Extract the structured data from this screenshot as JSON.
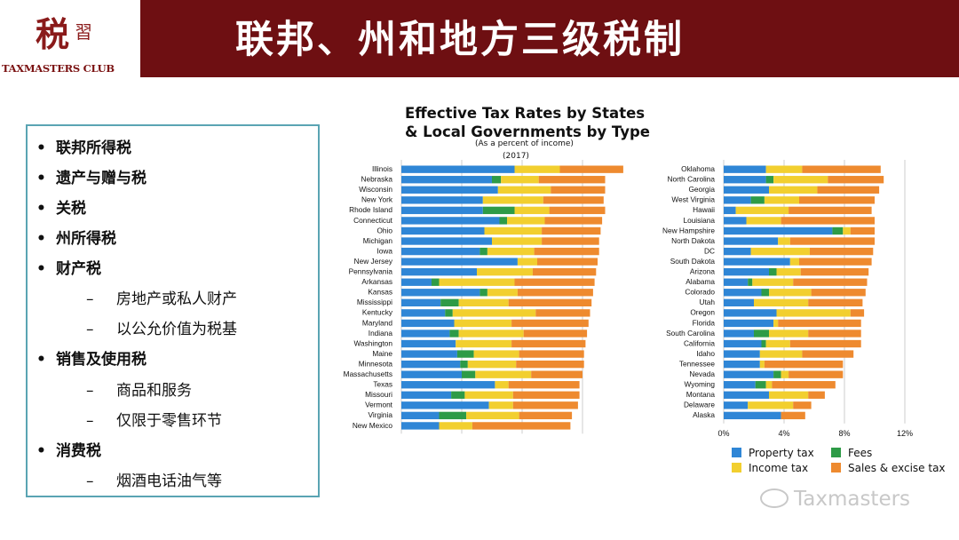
{
  "header": {
    "title": "联邦、州和地方三级税制",
    "logo_char_main": "税",
    "logo_char_small": "習",
    "logo_text": "TAXMASTERS CLUB"
  },
  "bullets": [
    {
      "text": "联邦所得税",
      "subs": []
    },
    {
      "text": "遗产与赠与税",
      "subs": []
    },
    {
      "text": "关税",
      "subs": []
    },
    {
      "text": "州所得税",
      "subs": []
    },
    {
      "text": "财产税",
      "subs": [
        "房地产或私人财产",
        "以公允价值为税基"
      ]
    },
    {
      "text": "销售及使用税",
      "subs": [
        "商品和服务",
        "仅限于零售环节"
      ]
    },
    {
      "text": "消费税",
      "subs": [
        "烟酒电话油气等"
      ]
    }
  ],
  "bullet_symbol": "•",
  "dash_symbol": "–",
  "chart_data": {
    "type": "bar",
    "stacked": true,
    "orientation": "horizontal",
    "title_line1": "Effective Tax Rates by States",
    "title_line2": "& Local Governments by Type",
    "subtitle": "(As a percent of income)",
    "year": "(2017)",
    "xlim": [
      0,
      14
    ],
    "xticks": [
      "0%",
      "4%",
      "8%",
      "12%"
    ],
    "grid": true,
    "legend_placement": "bottom",
    "series_order": [
      "Property tax",
      "Fees",
      "Income tax",
      "Sales & excise tax"
    ],
    "series_colors": {
      "Property tax": "#2f86d6",
      "Fees": "#2e9b47",
      "Income tax": "#f2cf2f",
      "Sales & excise tax": "#ee8a2f"
    },
    "legend": [
      {
        "name": "Property tax",
        "color": "#2f86d6"
      },
      {
        "name": "Fees",
        "color": "#2e9b47"
      },
      {
        "name": "Income tax",
        "color": "#f2cf2f"
      },
      {
        "name": "Sales & excise tax",
        "color": "#ee8a2f"
      }
    ],
    "panels": [
      {
        "rows": [
          {
            "state": "Illinois",
            "values": [
              7.5,
              0,
              3.0,
              4.2
            ]
          },
          {
            "state": "Nebraska",
            "values": [
              6.0,
              0.6,
              2.5,
              4.4
            ]
          },
          {
            "state": "Wisconsin",
            "values": [
              6.4,
              0,
              3.5,
              3.6
            ]
          },
          {
            "state": "New York",
            "values": [
              5.4,
              0,
              4.0,
              4.0
            ]
          },
          {
            "state": "Rhode Island",
            "values": [
              5.4,
              2.1,
              2.3,
              3.7
            ]
          },
          {
            "state": "Connecticut",
            "values": [
              6.5,
              0.5,
              2.5,
              3.8
            ]
          },
          {
            "state": "Ohio",
            "values": [
              5.5,
              0,
              3.8,
              3.9
            ]
          },
          {
            "state": "Michigan",
            "values": [
              6.0,
              0,
              3.3,
              3.8
            ]
          },
          {
            "state": "Iowa",
            "values": [
              5.2,
              0.5,
              3.1,
              4.3
            ]
          },
          {
            "state": "New Jersey",
            "values": [
              7.7,
              0,
              1.3,
              4.0
            ]
          },
          {
            "state": "Pennsylvania",
            "values": [
              5.0,
              0,
              3.7,
              4.2
            ]
          },
          {
            "state": "Arkansas",
            "values": [
              2.0,
              0.5,
              5.0,
              5.3
            ]
          },
          {
            "state": "Kansas",
            "values": [
              5.2,
              0.5,
              2.0,
              5.0
            ]
          },
          {
            "state": "Mississippi",
            "values": [
              2.6,
              1.2,
              3.3,
              5.5
            ]
          },
          {
            "state": "Kentucky",
            "values": [
              2.9,
              0.5,
              5.5,
              3.6
            ]
          },
          {
            "state": "Maryland",
            "values": [
              3.5,
              0,
              3.8,
              5.1
            ]
          },
          {
            "state": "Indiana",
            "values": [
              3.2,
              0.6,
              4.3,
              4.2
            ]
          },
          {
            "state": "Washington",
            "values": [
              3.6,
              0,
              3.7,
              4.9
            ]
          },
          {
            "state": "Maine",
            "values": [
              3.7,
              1.1,
              3.0,
              4.3
            ]
          },
          {
            "state": "Minnesota",
            "values": [
              3.9,
              0.5,
              3.2,
              4.5
            ]
          },
          {
            "state": "Massachusetts",
            "values": [
              4.0,
              0.9,
              3.7,
              3.4
            ]
          },
          {
            "state": "Texas",
            "values": [
              6.2,
              0,
              0.9,
              4.7
            ]
          },
          {
            "state": "Missouri",
            "values": [
              3.3,
              0.9,
              3.2,
              4.4
            ]
          },
          {
            "state": "Vermont",
            "values": [
              5.8,
              0,
              1.6,
              4.3
            ]
          },
          {
            "state": "Virginia",
            "values": [
              2.5,
              1.8,
              3.5,
              3.5
            ]
          },
          {
            "state": "New Mexico",
            "values": [
              2.5,
              0,
              2.2,
              6.5
            ]
          }
        ]
      },
      {
        "rows": [
          {
            "state": "Oklahoma",
            "values": [
              2.8,
              0,
              2.4,
              5.2
            ]
          },
          {
            "state": "North Carolina",
            "values": [
              2.8,
              0.5,
              3.6,
              3.7
            ]
          },
          {
            "state": "Georgia",
            "values": [
              3.0,
              0,
              3.2,
              4.1
            ]
          },
          {
            "state": "West Virginia",
            "values": [
              1.8,
              0.9,
              2.3,
              5.0
            ]
          },
          {
            "state": "Hawaii",
            "values": [
              0.8,
              0,
              3.5,
              5.5
            ]
          },
          {
            "state": "Louisiana",
            "values": [
              1.5,
              0,
              2.3,
              6.2
            ]
          },
          {
            "state": "New Hampshire",
            "values": [
              7.2,
              0.7,
              0.5,
              1.6
            ]
          },
          {
            "state": "North Dakota",
            "values": [
              3.6,
              0,
              0.8,
              5.6
            ]
          },
          {
            "state": "DC",
            "values": [
              1.8,
              0,
              3.9,
              4.2
            ]
          },
          {
            "state": "South Dakota",
            "values": [
              4.4,
              0,
              0.6,
              4.8
            ]
          },
          {
            "state": "Arizona",
            "values": [
              3.0,
              0.5,
              1.6,
              4.5
            ]
          },
          {
            "state": "Alabama",
            "values": [
              1.6,
              0.3,
              2.7,
              4.9
            ]
          },
          {
            "state": "Colorado",
            "values": [
              2.5,
              0.5,
              2.8,
              3.6
            ]
          },
          {
            "state": "Utah",
            "values": [
              2.0,
              0,
              3.6,
              3.6
            ]
          },
          {
            "state": "Oregon",
            "values": [
              3.5,
              0,
              4.9,
              0.9
            ]
          },
          {
            "state": "Florida",
            "values": [
              3.3,
              0,
              0.3,
              5.5
            ]
          },
          {
            "state": "South Carolina",
            "values": [
              2.0,
              1.0,
              2.6,
              3.5
            ]
          },
          {
            "state": "California",
            "values": [
              2.5,
              0.3,
              1.6,
              4.7
            ]
          },
          {
            "state": "Idaho",
            "values": [
              2.4,
              0,
              2.8,
              3.4
            ]
          },
          {
            "state": "Tennessee",
            "values": [
              2.4,
              0,
              0.3,
              5.2
            ]
          },
          {
            "state": "Nevada",
            "values": [
              3.3,
              0.5,
              0.5,
              3.6
            ]
          },
          {
            "state": "Wyoming",
            "values": [
              2.1,
              0.7,
              0.4,
              4.2
            ]
          },
          {
            "state": "Montana",
            "values": [
              3.0,
              0,
              2.6,
              1.1
            ]
          },
          {
            "state": "Delaware",
            "values": [
              1.6,
              0,
              3.0,
              1.2
            ]
          },
          {
            "state": "Alaska",
            "values": [
              3.8,
              0,
              0,
              1.6
            ]
          }
        ]
      }
    ]
  },
  "watermark": "Taxmasters"
}
